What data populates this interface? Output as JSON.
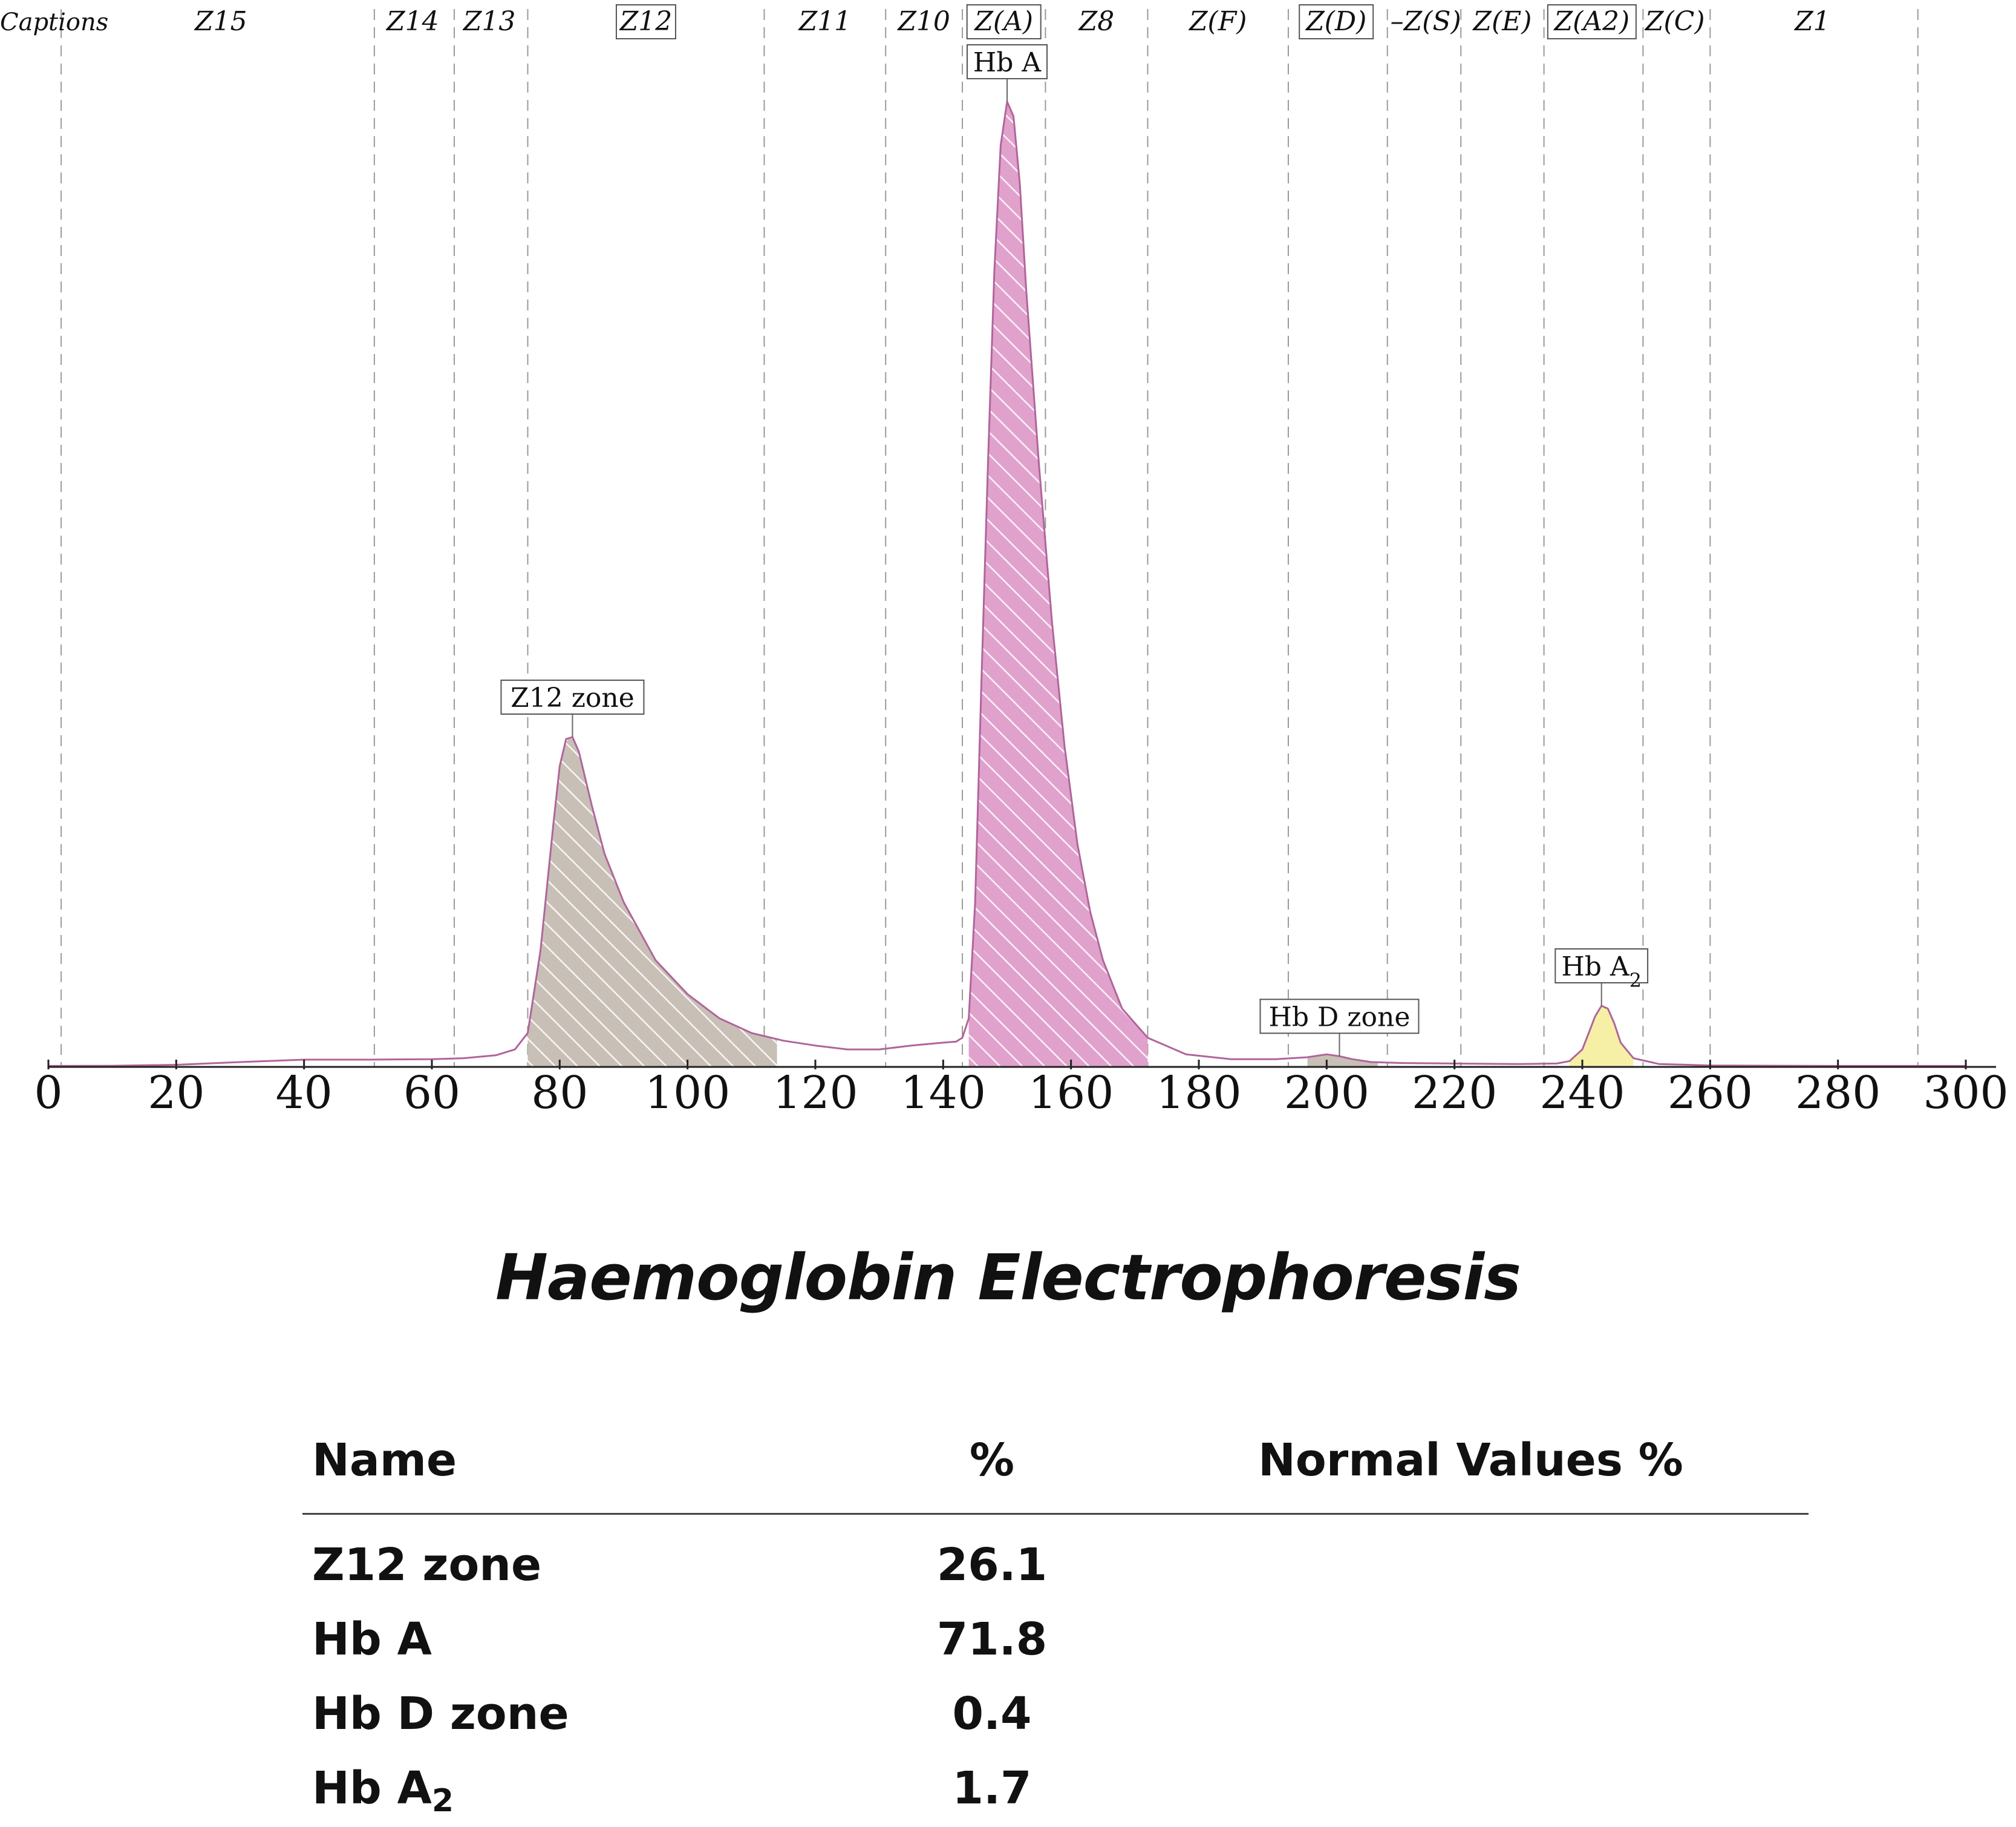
{
  "chart_data": {
    "type": "line",
    "captions_label": "Captions",
    "x_ticks": [
      0,
      20,
      40,
      60,
      80,
      100,
      120,
      140,
      160,
      180,
      200,
      220,
      240,
      260,
      280,
      300
    ],
    "xlim": [
      0,
      300
    ],
    "zone_boundaries": [
      2,
      51,
      63.5,
      75,
      112,
      131,
      143,
      156,
      172,
      194,
      209.5,
      221,
      234,
      249.5,
      260,
      292.5
    ],
    "zones": [
      {
        "label": "Z15",
        "center": 27,
        "boxed": false
      },
      {
        "label": "Z14",
        "center": 57,
        "boxed": false
      },
      {
        "label": "Z13",
        "center": 69,
        "boxed": false
      },
      {
        "label": "Z12",
        "center": 93.5,
        "boxed": true
      },
      {
        "label": "Z11",
        "center": 121.5,
        "boxed": false
      },
      {
        "label": "Z10",
        "center": 137,
        "boxed": false
      },
      {
        "label": "Z(A)",
        "center": 149.5,
        "boxed": true
      },
      {
        "label": "Z8",
        "center": 164,
        "boxed": false
      },
      {
        "label": "Z(F)",
        "center": 183,
        "boxed": false
      },
      {
        "label": "Z(D)",
        "center": 201.5,
        "boxed": true
      },
      {
        "label": "–Z(S)",
        "center": 215.5,
        "boxed": false
      },
      {
        "label": "Z(E)",
        "center": 227.5,
        "boxed": false
      },
      {
        "label": "Z(A2)",
        "center": 241.5,
        "boxed": true
      },
      {
        "label": "Z(C)",
        "center": 254.5,
        "boxed": false
      },
      {
        "label": "Z1",
        "center": 276,
        "boxed": false
      }
    ],
    "curve": {
      "x": [
        0,
        10,
        20,
        30,
        40,
        50,
        60,
        65,
        70,
        73,
        75,
        77,
        79,
        80,
        81,
        82,
        83,
        85,
        87,
        90,
        95,
        100,
        105,
        110,
        115,
        120,
        125,
        130,
        135,
        140,
        142,
        143,
        144,
        145,
        146,
        147,
        148,
        149,
        150,
        151,
        152,
        153,
        155,
        157,
        159,
        161,
        163,
        165,
        168,
        172,
        178,
        185,
        192,
        197,
        200,
        202,
        204,
        207,
        212,
        220,
        230,
        236,
        238,
        240,
        241,
        242,
        243,
        244,
        245,
        246,
        248,
        252,
        260,
        280,
        300
      ],
      "y": [
        0.1,
        0.12,
        0.22,
        0.5,
        0.75,
        0.75,
        0.8,
        0.9,
        1.2,
        1.8,
        3.5,
        12,
        25,
        31,
        33.8,
        34,
        32.5,
        27,
        22,
        17,
        11,
        7.5,
        5,
        3.5,
        2.7,
        2.2,
        1.8,
        1.8,
        2.2,
        2.5,
        2.6,
        3,
        5,
        17,
        40,
        62,
        82,
        95,
        99.5,
        98,
        91,
        80,
        62,
        46,
        33,
        23,
        16,
        11,
        6,
        3,
        1.3,
        0.8,
        0.8,
        1,
        1.3,
        1.1,
        0.8,
        0.5,
        0.4,
        0.35,
        0.3,
        0.35,
        0.6,
        1.8,
        3.5,
        5.2,
        6.3,
        6,
        4.5,
        2.5,
        0.9,
        0.3,
        0.15,
        0.1,
        0.1
      ],
      "ylim": [
        0,
        100
      ]
    },
    "peaks": [
      {
        "label": "Z12 zone",
        "x_start": 75,
        "x_end": 114,
        "apex_x": 82,
        "color": "#c8c0b6",
        "hatched": true
      },
      {
        "label": "Hb A",
        "x_start": 144,
        "x_end": 172,
        "apex_x": 150,
        "color": "#e0a2cc",
        "hatched": true
      },
      {
        "label": "Hb D zone",
        "x_start": 197,
        "x_end": 208,
        "apex_x": 202,
        "color": "#c8c0b6",
        "hatched": false
      },
      {
        "label": "Hb A",
        "label_sub": "2",
        "x_start": 238,
        "x_end": 248,
        "apex_x": 243,
        "color": "#f5f0a6",
        "hatched": false
      }
    ],
    "line_color": "#b0659a"
  },
  "title": "Haemoglobin Electrophoresis",
  "results": {
    "header": {
      "name": "Name",
      "percent": "%",
      "normal": "Normal Values %"
    },
    "rows": [
      {
        "name": "Z12 zone",
        "name_sub": "",
        "percent": "26.1",
        "normal": ""
      },
      {
        "name": "Hb A",
        "name_sub": "",
        "percent": "71.8",
        "normal": ""
      },
      {
        "name": "Hb D zone",
        "name_sub": "",
        "percent": "0.4",
        "normal": ""
      },
      {
        "name": "Hb A",
        "name_sub": "2",
        "percent": "1.7",
        "normal": ""
      }
    ]
  }
}
